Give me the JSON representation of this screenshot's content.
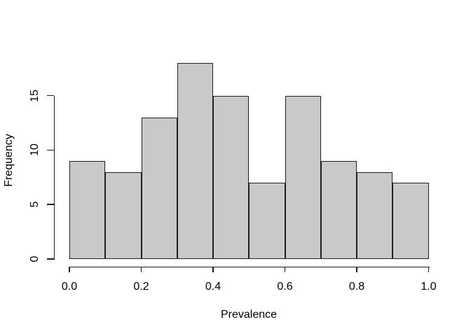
{
  "chart_data": {
    "type": "bar",
    "subtype": "histogram",
    "title": "",
    "xlabel": "Prevalence",
    "ylabel": "Frequency",
    "bin_edges": [
      0.0,
      0.1,
      0.2,
      0.3,
      0.4,
      0.5,
      0.6,
      0.7,
      0.8,
      0.9,
      1.0
    ],
    "values": [
      9,
      8,
      13,
      18,
      15,
      7,
      15,
      9,
      8,
      7
    ],
    "x_ticks": [
      {
        "value": 0.0,
        "label": "0.0"
      },
      {
        "value": 0.2,
        "label": "0.2"
      },
      {
        "value": 0.4,
        "label": "0.4"
      },
      {
        "value": 0.6,
        "label": "0.6"
      },
      {
        "value": 0.8,
        "label": "0.8"
      },
      {
        "value": 1.0,
        "label": "1.0"
      }
    ],
    "y_ticks": [
      {
        "value": 0,
        "label": "0"
      },
      {
        "value": 5,
        "label": "5"
      },
      {
        "value": 10,
        "label": "10"
      },
      {
        "value": 15,
        "label": "15"
      }
    ],
    "xlim": [
      0.0,
      1.0
    ],
    "ylim": [
      0,
      18.7
    ],
    "grid": false,
    "legend": null,
    "colors": {
      "bar_fill": "#c9c9c9",
      "bar_border": "#1f1f1f",
      "axis": "#1f1f1f",
      "text": "#000000",
      "background": "#ffffff"
    }
  }
}
